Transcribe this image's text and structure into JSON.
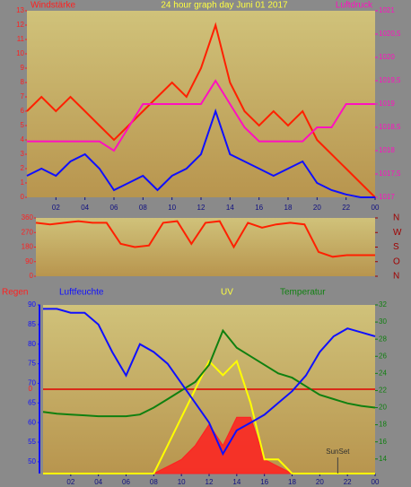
{
  "chart_data": [
    {
      "type": "line",
      "title": "24 hour graph day   Juni 01 2017",
      "y_label": "Windstärke",
      "y2_label": "Luftdruck",
      "x": [
        0,
        1,
        2,
        3,
        4,
        5,
        6,
        7,
        8,
        9,
        10,
        11,
        12,
        13,
        14,
        15,
        16,
        17,
        18,
        19,
        20,
        21,
        22,
        23,
        24
      ],
      "xlim": [
        0,
        24
      ],
      "xticks": [
        {
          "value": 2,
          "label": "02"
        },
        {
          "value": 4,
          "label": "04"
        },
        {
          "value": 6,
          "label": "06"
        },
        {
          "value": 8,
          "label": "08"
        },
        10,
        12,
        14,
        16,
        18,
        20,
        22,
        {
          "value": 24,
          "label": "00"
        }
      ],
      "ylim": [
        0,
        13
      ],
      "yticks": [
        0,
        1,
        2,
        3,
        4,
        5,
        6,
        7,
        8,
        9,
        10,
        11,
        12,
        13
      ],
      "y2lim": [
        1017,
        1021
      ],
      "y2ticks": [
        1017,
        {
          "value": 1017.5,
          "label": "1017,5"
        },
        1018,
        {
          "value": 1018.5,
          "label": "1018,5"
        },
        1019,
        {
          "value": 1019.5,
          "label": "1019,5"
        },
        1020,
        {
          "value": 1020.5,
          "label": "1020,5"
        },
        1021
      ],
      "series": [
        {
          "color": "#ff2000",
          "values": [
            6,
            7,
            6,
            7,
            6,
            5,
            4,
            5,
            6,
            7,
            8,
            7,
            9,
            12,
            8,
            6,
            5,
            6,
            5,
            6,
            4,
            3,
            2,
            1,
            0
          ]
        },
        {
          "color": "#ff10c0",
          "axis": "y2",
          "values": [
            1018.2,
            1018.2,
            1018.2,
            1018.2,
            1018.2,
            1018.2,
            1018,
            1018.5,
            1019,
            1019,
            1019,
            1019,
            1019,
            1019.5,
            1019,
            1018.5,
            1018.2,
            1018.2,
            1018.2,
            1018.2,
            1018.5,
            1018.5,
            1019,
            1019,
            1019
          ]
        },
        {
          "color": "#1010ff",
          "values": [
            1.5,
            2,
            1.5,
            2.5,
            3,
            2,
            0.5,
            1,
            1.5,
            0.5,
            1.5,
            2,
            3,
            6,
            3,
            2.5,
            2,
            1.5,
            2,
            2.5,
            1,
            0.5,
            0.2,
            0,
            0
          ]
        }
      ]
    },
    {
      "type": "line",
      "x": [
        0,
        1,
        2,
        3,
        4,
        5,
        6,
        7,
        8,
        9,
        10,
        11,
        12,
        13,
        14,
        15,
        16,
        17,
        18,
        19,
        20,
        21,
        22,
        23,
        24
      ],
      "xlim": [
        0,
        24
      ],
      "ylim": [
        0,
        360
      ],
      "yticks": [
        0,
        90,
        180,
        270,
        360
      ],
      "y2lim": [
        0,
        360
      ],
      "y2ticks": [
        {
          "value": 0,
          "label": "N"
        },
        {
          "value": 90,
          "label": "O"
        },
        {
          "value": 180,
          "label": "S"
        },
        {
          "value": 270,
          "label": "W"
        },
        {
          "value": 360,
          "label": "N"
        }
      ],
      "series": [
        {
          "color": "#ff2000",
          "values": [
            330,
            320,
            330,
            340,
            330,
            330,
            200,
            180,
            190,
            330,
            340,
            200,
            330,
            340,
            180,
            330,
            300,
            320,
            330,
            320,
            150,
            120,
            130,
            130,
            130
          ]
        }
      ]
    },
    {
      "type": "line",
      "rain_label": "Regen",
      "y_label": "Luftfeuchte",
      "uv_label": "UV",
      "y2_label": "Temperatur",
      "x": [
        0,
        1,
        2,
        3,
        4,
        5,
        6,
        7,
        8,
        9,
        10,
        11,
        12,
        13,
        14,
        15,
        16,
        17,
        18,
        19,
        20,
        21,
        22,
        23,
        24
      ],
      "xlim": [
        0,
        24
      ],
      "xticks": [
        {
          "value": 2,
          "label": "02"
        },
        {
          "value": 4,
          "label": "04"
        },
        {
          "value": 6,
          "label": "06"
        },
        {
          "value": 8,
          "label": "08"
        },
        10,
        12,
        14,
        16,
        18,
        20,
        22,
        {
          "value": 24,
          "label": "00"
        }
      ],
      "ylim": [
        47,
        90
      ],
      "yticks": [
        50,
        55,
        60,
        65,
        70,
        75,
        80,
        85,
        90
      ],
      "y2lim": [
        12.3,
        32
      ],
      "y2ticks": [
        14,
        16,
        18,
        20,
        22,
        24,
        26,
        28,
        30,
        32
      ],
      "rain_ticks": [
        0
      ],
      "uvlim": [
        0,
        12
      ],
      "series": [
        {
          "color": "#ff2020",
          "axis": "uv",
          "fill": true,
          "values": [
            0,
            0,
            0,
            0,
            0,
            0,
            0,
            0,
            0,
            0.5,
            1,
            2,
            3.5,
            2,
            4,
            4,
            1,
            0.5,
            0,
            0,
            0,
            0,
            0,
            0,
            0
          ]
        },
        {
          "color": "#ffff00",
          "axis": "uv",
          "values": [
            0,
            0,
            0,
            0,
            0,
            0,
            0,
            0,
            0,
            2,
            4,
            6,
            8,
            7,
            8,
            5,
            1,
            1,
            0,
            0,
            0,
            0,
            0,
            0,
            0
          ]
        },
        {
          "color": "#108010",
          "axis": "y2",
          "values": [
            19.5,
            19.3,
            19.2,
            19.1,
            19,
            19,
            19,
            19.2,
            20,
            21,
            22,
            23,
            25,
            29,
            27,
            26,
            25,
            24,
            23.5,
            22.5,
            21.5,
            21,
            20.5,
            20.2,
            20
          ]
        },
        {
          "color": "#1010ff",
          "values": [
            89,
            89,
            88,
            88,
            85,
            78,
            72,
            80,
            78,
            75,
            70,
            65,
            60,
            52,
            58,
            60,
            62,
            65,
            68,
            72,
            78,
            82,
            84,
            83,
            82
          ]
        }
      ],
      "annotations": [
        {
          "text": "SunSet",
          "x": 21.3
        }
      ]
    }
  ]
}
